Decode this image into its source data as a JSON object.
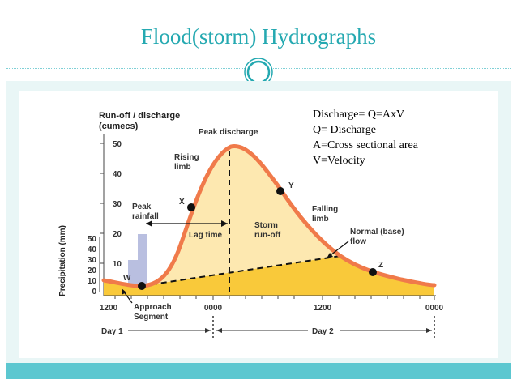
{
  "slide": {
    "title": "Flood(storm) Hydrographs",
    "notes": [
      "Discharge= Q=AxV",
      "Q= Discharge",
      "A=Cross sectional area",
      "V=Velocity"
    ]
  },
  "diagram": {
    "y_axis_title": [
      "Run-off / discharge",
      "(cumecs)"
    ],
    "y_ticks": [
      "50",
      "40",
      "30",
      "20",
      "10"
    ],
    "precip_axis_title": "Precipitation (mm)",
    "precip_ticks": [
      "50",
      "40",
      "30",
      "20",
      "10",
      "0"
    ],
    "x_ticks": [
      "1200",
      "0000",
      "1200",
      "0000"
    ],
    "day_labels": [
      "Day 1",
      "Day 2"
    ],
    "labels": {
      "peak_discharge": "Peak discharge",
      "rising_limb": [
        "Rising",
        "limb"
      ],
      "falling_limb": [
        "Falling",
        "limb"
      ],
      "peak_rainfall": [
        "Peak",
        "rainfall"
      ],
      "lag_time": "Lag time",
      "storm_runoff": [
        "Storm",
        "run-off"
      ],
      "base_flow": [
        "Normal (base)",
        "flow"
      ],
      "approach_segment": [
        "Approach",
        "Segment"
      ]
    },
    "points": [
      "W",
      "X",
      "Y",
      "Z"
    ],
    "colors": {
      "hydrograph_line": "#f07a4a",
      "storm_runoff_fill": "#fde8b0",
      "base_flow_fill": "#f9c93a",
      "rainfall_bars": "#b9bfe0",
      "accent": "#25a9b1"
    }
  }
}
